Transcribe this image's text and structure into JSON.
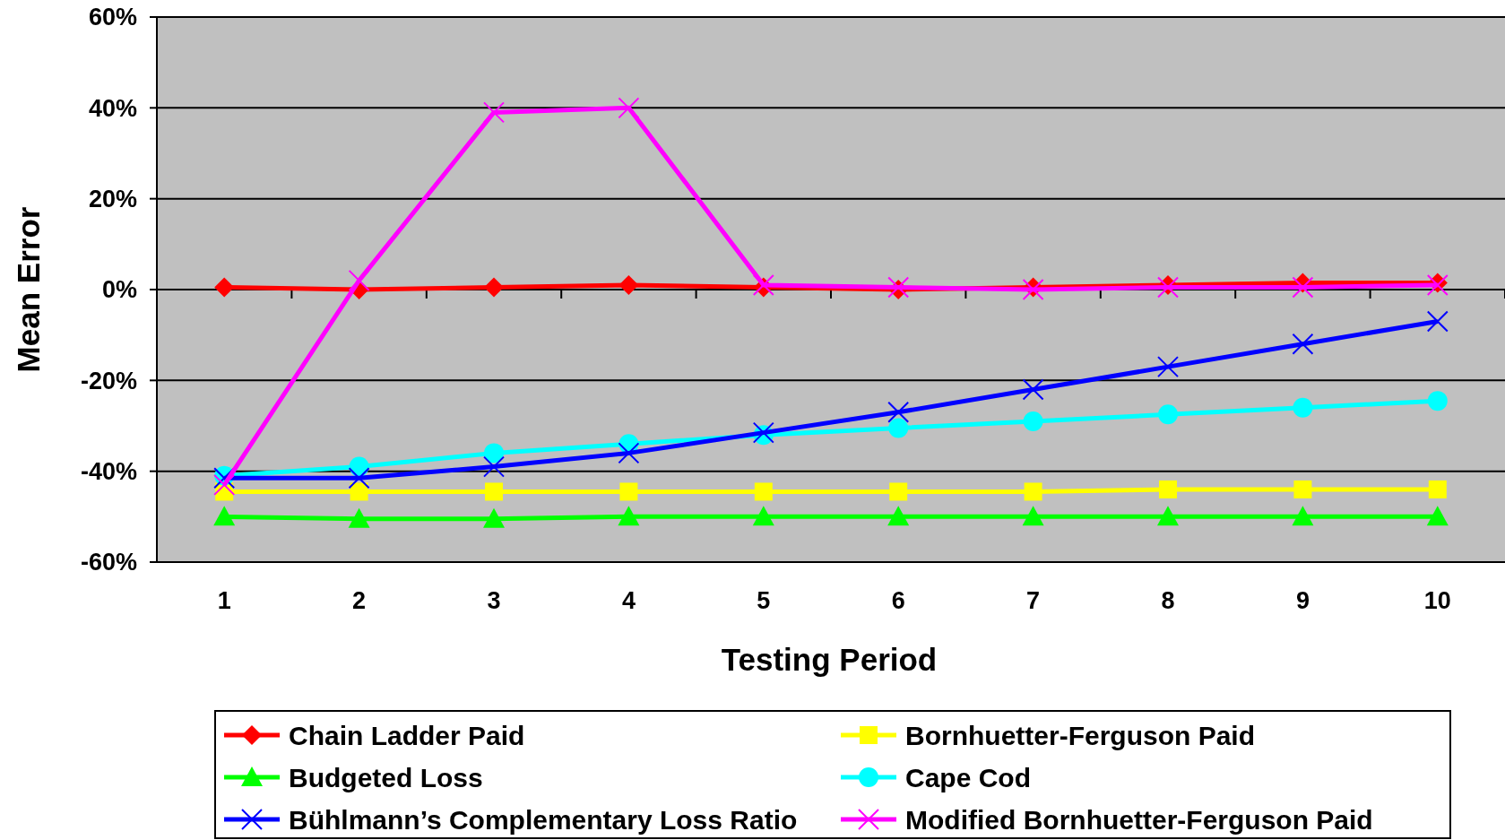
{
  "chart_data": {
    "type": "line",
    "xlabel": "Testing Period",
    "ylabel": "Mean Error",
    "categories": [
      "1",
      "2",
      "3",
      "4",
      "5",
      "6",
      "7",
      "8",
      "9",
      "10"
    ],
    "ylim": [
      -60,
      60
    ],
    "yticks": [
      {
        "value": -60,
        "label": "-60%"
      },
      {
        "value": -40,
        "label": "-40%"
      },
      {
        "value": -20,
        "label": "-20%"
      },
      {
        "value": 0,
        "label": "0%"
      },
      {
        "value": 20,
        "label": "20%"
      },
      {
        "value": 40,
        "label": "40%"
      },
      {
        "value": 60,
        "label": "60%"
      }
    ],
    "grid": "y",
    "legend": "bottom",
    "line_style": "solid",
    "series": [
      {
        "name": "Chain Ladder Paid",
        "color": "#ff0000",
        "marker": "diamond",
        "values": [
          0.5,
          0,
          0.5,
          1,
          0.5,
          0,
          0.5,
          1,
          1.5,
          1.5
        ]
      },
      {
        "name": "Bornhuetter-Ferguson Paid",
        "color": "#ffff00",
        "marker": "square",
        "values": [
          -44.5,
          -44.5,
          -44.5,
          -44.5,
          -44.5,
          -44.5,
          -44.5,
          -44,
          -44,
          -44
        ]
      },
      {
        "name": "Budgeted Loss",
        "color": "#00ff00",
        "marker": "triangle",
        "values": [
          -50,
          -50.5,
          -50.5,
          -50,
          -50,
          -50,
          -50,
          -50,
          -50,
          -50
        ]
      },
      {
        "name": "Cape Cod",
        "color": "#00ffff",
        "marker": "circle",
        "values": [
          -41,
          -39,
          -36,
          -34,
          -32,
          -30.5,
          -29,
          -27.5,
          -26,
          -24.5
        ]
      },
      {
        "name": "Bühlmann’s Complementary Loss Ratio",
        "color": "#0000ff",
        "marker": "cross",
        "values": [
          -41.5,
          -41.5,
          -39,
          -36,
          -31.5,
          -27,
          -22,
          -17,
          -12,
          -7
        ]
      },
      {
        "name": "Modified Bornhuetter-Ferguson Paid",
        "color": "#ff00ff",
        "marker": "cross",
        "values": [
          -43,
          2,
          39,
          40,
          1,
          0.5,
          0,
          0.5,
          0.5,
          1
        ]
      }
    ]
  }
}
